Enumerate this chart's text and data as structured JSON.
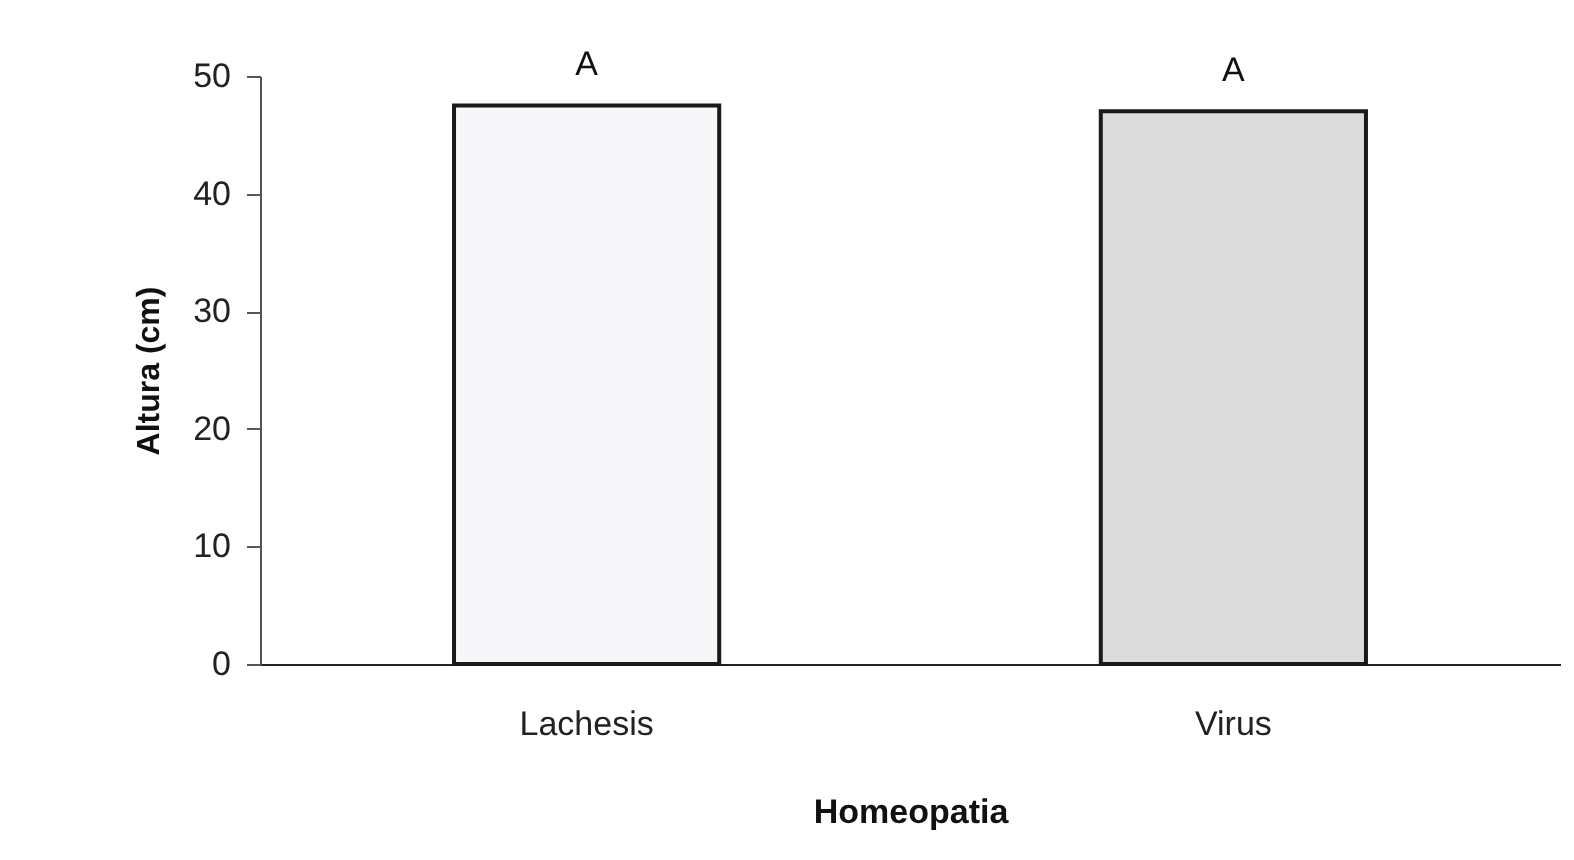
{
  "chart_data": {
    "type": "bar",
    "xlabel": "Homeopatia",
    "ylabel": "Altura (cm)",
    "categories": [
      "Lachesis",
      "Virus"
    ],
    "values": [
      47.5,
      47
    ],
    "colors": [
      "#f7f7f9",
      "#dcdcdc"
    ],
    "ylim": [
      0,
      50
    ],
    "yticks": [
      0,
      10,
      20,
      30,
      40,
      50
    ],
    "annotations": [
      {
        "text": "A",
        "x": "Lachesis",
        "y": 47.5
      },
      {
        "text": "A",
        "x": "Virus",
        "y": 47
      }
    ]
  }
}
